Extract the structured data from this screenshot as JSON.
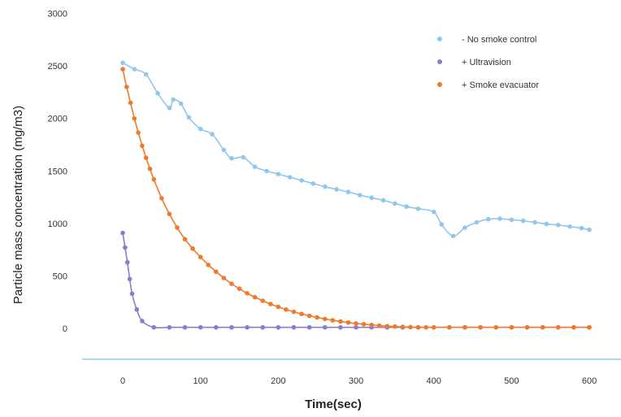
{
  "chart_data": {
    "type": "line",
    "title": "",
    "xlabel": "Time(sec)",
    "ylabel": "Particle mass concentration (mg/m3)",
    "xlim": [
      -20,
      615
    ],
    "ylim": [
      -300,
      3000
    ],
    "x_ticks": [
      "0",
      "100",
      "200",
      "300",
      "400",
      "500",
      "600"
    ],
    "y_ticks": [
      "0",
      "500",
      "1000",
      "1500",
      "2000",
      "2500",
      "3000"
    ],
    "grid": false,
    "legend_position": "top-right",
    "series": [
      {
        "name": "- No smoke control",
        "color": "#8fc7ee",
        "x": [
          0,
          15,
          30,
          45,
          60,
          65,
          75,
          85,
          100,
          115,
          130,
          140,
          155,
          170,
          185,
          200,
          215,
          230,
          245,
          260,
          275,
          290,
          305,
          320,
          335,
          350,
          365,
          380,
          400,
          410,
          425,
          440,
          455,
          470,
          485,
          500,
          515,
          530,
          545,
          560,
          575,
          590,
          600
        ],
        "y": [
          2530,
          2470,
          2420,
          2240,
          2100,
          2180,
          2140,
          2010,
          1900,
          1850,
          1700,
          1620,
          1630,
          1540,
          1500,
          1470,
          1440,
          1410,
          1380,
          1350,
          1325,
          1300,
          1270,
          1245,
          1220,
          1190,
          1160,
          1140,
          1110,
          990,
          880,
          960,
          1010,
          1040,
          1045,
          1035,
          1025,
          1010,
          995,
          985,
          970,
          955,
          940
        ]
      },
      {
        "name": "+ Ultravision",
        "color": "#8a7cce",
        "x": [
          0,
          3,
          6,
          9,
          12,
          18,
          25,
          40,
          60,
          80,
          100,
          120,
          140,
          160,
          180,
          200,
          220,
          240,
          260,
          280,
          300,
          320,
          340,
          360,
          380,
          400,
          420,
          440,
          460,
          480,
          500,
          520,
          540,
          560,
          580,
          600
        ],
        "y": [
          910,
          770,
          630,
          470,
          330,
          180,
          70,
          10,
          10,
          10,
          10,
          10,
          10,
          10,
          10,
          10,
          10,
          10,
          10,
          10,
          10,
          10,
          10,
          10,
          10,
          10,
          10,
          10,
          10,
          10,
          10,
          10,
          10,
          10,
          10,
          10
        ]
      },
      {
        "name": "+ Smoke evacuator",
        "color": "#ef7a2c",
        "x": [
          0,
          5,
          10,
          15,
          20,
          25,
          30,
          35,
          40,
          50,
          60,
          70,
          80,
          90,
          100,
          110,
          120,
          130,
          140,
          150,
          160,
          170,
          180,
          190,
          200,
          210,
          220,
          230,
          240,
          250,
          260,
          270,
          280,
          290,
          300,
          310,
          320,
          330,
          340,
          350,
          360,
          370,
          380,
          390,
          400,
          420,
          440,
          460,
          480,
          500,
          520,
          540,
          560,
          580,
          600
        ],
        "y": [
          2470,
          2300,
          2150,
          2000,
          1865,
          1740,
          1625,
          1520,
          1420,
          1240,
          1090,
          960,
          850,
          760,
          680,
          605,
          540,
          480,
          425,
          378,
          335,
          297,
          263,
          232,
          205,
          180,
          158,
          138,
          120,
          104,
          90,
          77,
          66,
          56,
          47,
          40,
          33,
          27,
          22,
          18,
          15,
          12,
          10,
          10,
          10,
          10,
          10,
          10,
          10,
          10,
          10,
          10,
          10,
          10,
          10
        ]
      }
    ]
  }
}
